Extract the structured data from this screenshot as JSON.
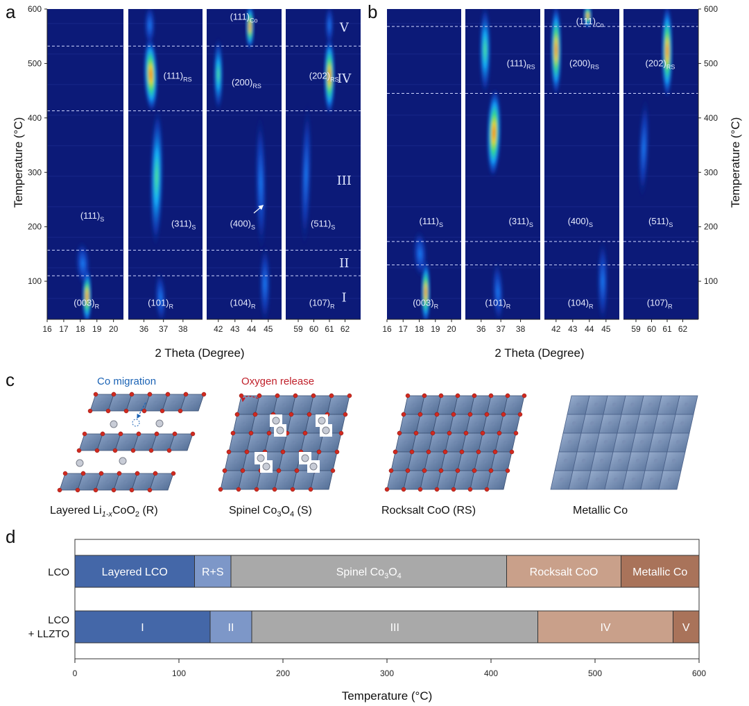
{
  "panels": {
    "a_letter": "a",
    "b_letter": "b",
    "c_letter": "c",
    "d_letter": "d"
  },
  "colors": {
    "heat_bg": "#0c1a78",
    "layered": "#4467a8",
    "rs_mix": "#7d97c8",
    "spinel": "#a9a9a9",
    "rocksalt": "#c9a08a",
    "metallic": "#a9735a",
    "co_migration": "#1b63b5",
    "oxygen_release": "#c0202a"
  },
  "chart_data": [
    {
      "type": "heatmap",
      "panel": "a",
      "ylabel": "Temperature (°C)",
      "xlabel": "2 Theta (Degree)",
      "ylim": [
        30,
        600
      ],
      "yticks": [
        100,
        200,
        300,
        400,
        500,
        600
      ],
      "boundaries": [
        110,
        157,
        413,
        532
      ],
      "region_labels": [
        "I",
        "II",
        "III",
        "IV",
        "V"
      ],
      "subplots": [
        {
          "xlim": [
            16,
            20.6
          ],
          "xticks": [
            16,
            17,
            18,
            19,
            20
          ],
          "labels": [
            {
              "m": "(003)",
              "s": "R",
              "x": 17.6,
              "y": 55
            },
            {
              "m": "(111)",
              "s": "S",
              "x": 18.0,
              "y": 215
            }
          ],
          "peaks": [
            {
              "x0": 18.4,
              "y0": 30,
              "x1": 18.4,
              "y1": 115,
              "w": 0.28,
              "i": 1.0
            },
            {
              "x0": 18.2,
              "y0": 100,
              "x1": 18.1,
              "y1": 165,
              "w": 0.45,
              "i": 0.35
            }
          ]
        },
        {
          "xlim": [
            35.2,
            39.0
          ],
          "xticks": [
            36,
            37,
            38
          ],
          "labels": [
            {
              "m": "(101)",
              "s": "R",
              "x": 36.2,
              "y": 55
            },
            {
              "m": "(111)",
              "s": "RS",
              "x": 37.0,
              "y": 472
            },
            {
              "m": "(311)",
              "s": "S",
              "x": 37.4,
              "y": 200
            }
          ],
          "peaks": [
            {
              "x0": 36.9,
              "y0": 30,
              "x1": 36.8,
              "y1": 110,
              "w": 0.3,
              "i": 0.25
            },
            {
              "x0": 36.6,
              "y0": 170,
              "x1": 36.7,
              "y1": 413,
              "w": 0.35,
              "i": 0.7
            },
            {
              "x0": 36.4,
              "y0": 420,
              "x1": 36.3,
              "y1": 540,
              "w": 0.35,
              "i": 1.0
            },
            {
              "x0": 36.3,
              "y0": 540,
              "x1": 36.3,
              "y1": 600,
              "w": 0.3,
              "i": 0.2
            }
          ]
        },
        {
          "xlim": [
            41.3,
            45.8
          ],
          "xticks": [
            42,
            43,
            44,
            45
          ],
          "labels": [
            {
              "m": "(104)",
              "s": "R",
              "x": 42.7,
              "y": 55
            },
            {
              "m": "(200)",
              "s": "RS",
              "x": 42.8,
              "y": 460
            },
            {
              "m": "(400)",
              "s": "S",
              "x": 42.7,
              "y": 200
            },
            {
              "m": "(111)",
              "s": "Co",
              "x": 42.7,
              "y": 580
            }
          ],
          "peaks": [
            {
              "x0": 44.8,
              "y0": 30,
              "x1": 44.8,
              "y1": 160,
              "w": 0.35,
              "i": 0.2
            },
            {
              "x0": 44.6,
              "y0": 160,
              "x1": 44.5,
              "y1": 400,
              "w": 0.35,
              "i": 0.1
            },
            {
              "x0": 42.0,
              "y0": 420,
              "x1": 42.0,
              "y1": 540,
              "w": 0.3,
              "i": 0.8
            },
            {
              "x0": 43.9,
              "y0": 535,
              "x1": 43.9,
              "y1": 600,
              "w": 0.25,
              "i": 1.0
            }
          ]
        },
        {
          "xlim": [
            58.2,
            63.0
          ],
          "xticks": [
            59,
            60,
            61,
            62
          ],
          "labels": [
            {
              "m": "(107)",
              "s": "R",
              "x": 59.7,
              "y": 55
            },
            {
              "m": "(202)",
              "s": "RS",
              "x": 59.7,
              "y": 472
            },
            {
              "m": "(511)",
              "s": "S",
              "x": 59.8,
              "y": 200
            }
          ],
          "peaks": [
            {
              "x0": 59.4,
              "y0": 170,
              "x1": 59.6,
              "y1": 420,
              "w": 0.35,
              "i": 0.3
            },
            {
              "x0": 61.0,
              "y0": 415,
              "x1": 61.0,
              "y1": 540,
              "w": 0.35,
              "i": 1.0
            },
            {
              "x0": 61.0,
              "y0": 540,
              "x1": 61.0,
              "y1": 600,
              "w": 0.3,
              "i": 0.2
            }
          ]
        }
      ]
    },
    {
      "type": "heatmap",
      "panel": "b",
      "ylabel": "Temperature (°C)",
      "xlabel": "2 Theta (Degree)",
      "ylim": [
        30,
        600
      ],
      "yticks": [
        100,
        200,
        300,
        400,
        500,
        600
      ],
      "boundaries": [
        130,
        173,
        445,
        568
      ],
      "subplots": [
        {
          "xlim": [
            16,
            20.6
          ],
          "xticks": [
            16,
            17,
            18,
            19,
            20
          ],
          "labels": [
            {
              "m": "(003)",
              "s": "R",
              "x": 17.6,
              "y": 55
            },
            {
              "m": "(111)",
              "s": "S",
              "x": 18.0,
              "y": 205
            }
          ],
          "peaks": [
            {
              "x0": 18.4,
              "y0": 30,
              "x1": 18.4,
              "y1": 130,
              "w": 0.28,
              "i": 1.0
            },
            {
              "x0": 18.1,
              "y0": 115,
              "x1": 18.0,
              "y1": 185,
              "w": 0.45,
              "i": 0.3
            }
          ]
        },
        {
          "xlim": [
            35.2,
            39.0
          ],
          "xticks": [
            36,
            37,
            38
          ],
          "labels": [
            {
              "m": "(101)",
              "s": "R",
              "x": 36.2,
              "y": 55
            },
            {
              "m": "(111)",
              "s": "RS",
              "x": 37.3,
              "y": 495
            },
            {
              "m": "(311)",
              "s": "S",
              "x": 37.4,
              "y": 205
            }
          ],
          "peaks": [
            {
              "x0": 36.9,
              "y0": 30,
              "x1": 36.8,
              "y1": 130,
              "w": 0.3,
              "i": 0.25
            },
            {
              "x0": 36.6,
              "y0": 300,
              "x1": 36.7,
              "y1": 445,
              "w": 0.35,
              "i": 0.9
            },
            {
              "x0": 36.2,
              "y0": 450,
              "x1": 36.2,
              "y1": 600,
              "w": 0.3,
              "i": 0.7
            }
          ]
        },
        {
          "xlim": [
            41.3,
            45.8
          ],
          "xticks": [
            42,
            43,
            44,
            45
          ],
          "labels": [
            {
              "m": "(104)",
              "s": "R",
              "x": 42.7,
              "y": 55
            },
            {
              "m": "(200)",
              "s": "RS",
              "x": 42.8,
              "y": 495
            },
            {
              "m": "(400)",
              "s": "S",
              "x": 42.7,
              "y": 205
            },
            {
              "m": "(111)",
              "s": "Co",
              "x": 43.2,
              "y": 572
            }
          ],
          "peaks": [
            {
              "x0": 44.8,
              "y0": 30,
              "x1": 44.8,
              "y1": 170,
              "w": 0.35,
              "i": 0.2
            },
            {
              "x0": 42.0,
              "y0": 450,
              "x1": 42.0,
              "y1": 600,
              "w": 0.32,
              "i": 0.9
            },
            {
              "x0": 43.9,
              "y0": 575,
              "x1": 43.9,
              "y1": 600,
              "w": 0.25,
              "i": 1.0
            }
          ]
        },
        {
          "xlim": [
            58.2,
            63.0
          ],
          "xticks": [
            59,
            60,
            61,
            62
          ],
          "labels": [
            {
              "m": "(107)",
              "s": "R",
              "x": 59.7,
              "y": 55
            },
            {
              "m": "(202)",
              "s": "RS",
              "x": 59.6,
              "y": 495
            },
            {
              "m": "(511)",
              "s": "S",
              "x": 59.8,
              "y": 205
            }
          ],
          "peaks": [
            {
              "x0": 59.4,
              "y0": 260,
              "x1": 59.6,
              "y1": 430,
              "w": 0.35,
              "i": 0.3
            },
            {
              "x0": 61.0,
              "y0": 445,
              "x1": 61.0,
              "y1": 600,
              "w": 0.35,
              "i": 1.0
            }
          ]
        }
      ]
    },
    {
      "type": "bar",
      "panel": "d",
      "xlabel": "Temperature (°C)",
      "xlim": [
        0,
        600
      ],
      "xticks": [
        0,
        100,
        200,
        300,
        400,
        500,
        600
      ],
      "rows": [
        {
          "label": [
            "LCO"
          ],
          "segments": [
            {
              "start": 0,
              "end": 115,
              "label": "Layered LCO",
              "color": "#4467a8"
            },
            {
              "start": 115,
              "end": 150,
              "label": "R+S",
              "color": "#7d97c8"
            },
            {
              "start": 150,
              "end": 415,
              "label": "Spinel Co",
              "sub": "3",
              "after": "O",
              "sub2": "4",
              "color": "#a9a9a9"
            },
            {
              "start": 415,
              "end": 525,
              "label": "Rocksalt CoO",
              "color": "#c9a08a"
            },
            {
              "start": 525,
              "end": 600,
              "label": "Metallic Co",
              "color": "#a9735a"
            }
          ]
        },
        {
          "label": [
            "LCO",
            "+ LLZTO"
          ],
          "segments": [
            {
              "start": 0,
              "end": 130,
              "label": "I",
              "color": "#4467a8"
            },
            {
              "start": 130,
              "end": 170,
              "label": "II",
              "color": "#7d97c8"
            },
            {
              "start": 170,
              "end": 445,
              "label": "III",
              "color": "#a9a9a9"
            },
            {
              "start": 445,
              "end": 575,
              "label": "IV",
              "color": "#c9a08a"
            },
            {
              "start": 575,
              "end": 600,
              "label": "V",
              "color": "#a9735a"
            }
          ]
        }
      ]
    }
  ],
  "panel_c": {
    "co_migration": "Co migration",
    "oxygen_release": "Oxygen release",
    "structures": [
      {
        "name": "layered",
        "pre": "Layered Li",
        "sub1": "1-x",
        "mid": "CoO",
        "sub2": "2",
        "post": " (R)"
      },
      {
        "name": "spinel",
        "pre": "Spinel Co",
        "sub1": "3",
        "mid": "O",
        "sub2": "4",
        "post": " (S)"
      },
      {
        "name": "rocksalt",
        "pre": "Rocksalt CoO (RS)",
        "sub1": "",
        "mid": "",
        "sub2": "",
        "post": ""
      },
      {
        "name": "metallic",
        "pre": "Metallic Co",
        "sub1": "",
        "mid": "",
        "sub2": "",
        "post": ""
      }
    ]
  }
}
